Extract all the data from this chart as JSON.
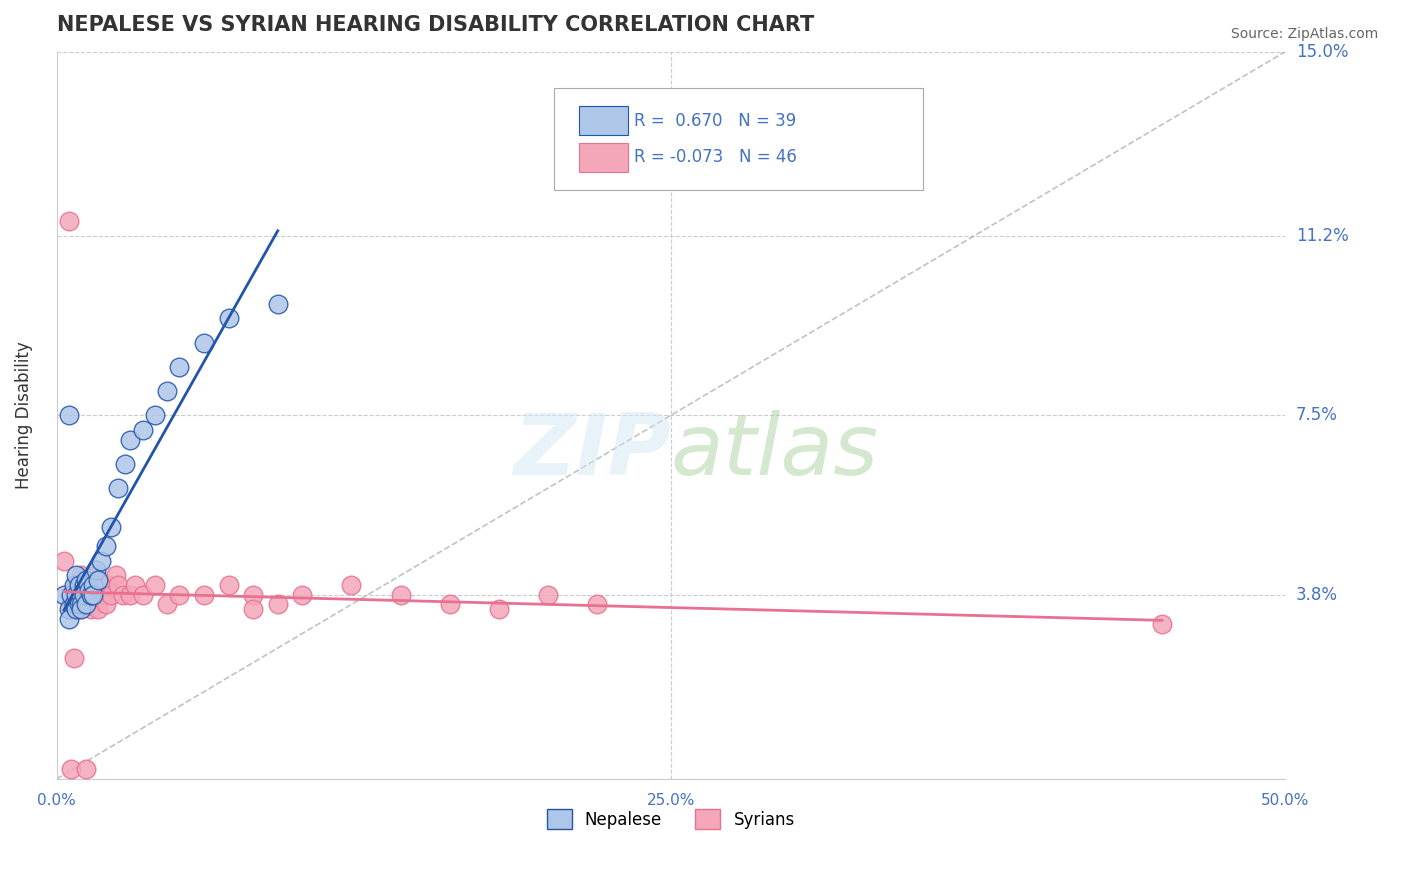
{
  "title": "NEPALESE VS SYRIAN HEARING DISABILITY CORRELATION CHART",
  "source": "Source: ZipAtlas.com",
  "ylabel": "Hearing Disability",
  "xlabel": "",
  "xlim": [
    0.0,
    0.5
  ],
  "ylim": [
    0.0,
    0.15
  ],
  "xticks": [
    0.0,
    0.05,
    0.1,
    0.15,
    0.2,
    0.25,
    0.3,
    0.35,
    0.4,
    0.45,
    0.5
  ],
  "yticks": [
    0.0,
    0.038,
    0.075,
    0.112,
    0.15
  ],
  "ytick_labels": [
    "",
    "3.8%",
    "7.5%",
    "11.2%",
    "15.0%"
  ],
  "xtick_labels": [
    "0.0%",
    "",
    "",
    "",
    "",
    "25.0%",
    "",
    "",
    "",
    "",
    "50.0%"
  ],
  "grid_color": "#cccccc",
  "nepalese_color": "#aec6e8",
  "syrian_color": "#f4a7b9",
  "nepalese_line_color": "#2255aa",
  "syrian_line_color": "#e87090",
  "legend_R_nepalese": "R =  0.670",
  "legend_N_nepalese": "N = 39",
  "legend_R_syrian": "R = -0.073",
  "legend_N_syrian": "N = 46",
  "watermark": "ZIPatlas",
  "nepalese_x": [
    0.003,
    0.005,
    0.005,
    0.006,
    0.007,
    0.007,
    0.008,
    0.008,
    0.008,
    0.009,
    0.009,
    0.009,
    0.01,
    0.01,
    0.01,
    0.011,
    0.011,
    0.012,
    0.012,
    0.013,
    0.014,
    0.015,
    0.015,
    0.016,
    0.017,
    0.018,
    0.02,
    0.022,
    0.025,
    0.028,
    0.03,
    0.035,
    0.04,
    0.045,
    0.05,
    0.06,
    0.07,
    0.09,
    0.005
  ],
  "nepalese_y": [
    0.038,
    0.035,
    0.033,
    0.038,
    0.04,
    0.036,
    0.042,
    0.035,
    0.038,
    0.037,
    0.036,
    0.04,
    0.038,
    0.036,
    0.035,
    0.04,
    0.038,
    0.041,
    0.036,
    0.039,
    0.038,
    0.04,
    0.038,
    0.043,
    0.041,
    0.045,
    0.048,
    0.052,
    0.06,
    0.065,
    0.07,
    0.072,
    0.075,
    0.08,
    0.085,
    0.09,
    0.095,
    0.098,
    0.075
  ],
  "syrian_x": [
    0.003,
    0.005,
    0.006,
    0.007,
    0.008,
    0.008,
    0.009,
    0.01,
    0.01,
    0.011,
    0.012,
    0.013,
    0.014,
    0.015,
    0.015,
    0.016,
    0.017,
    0.018,
    0.019,
    0.02,
    0.021,
    0.022,
    0.024,
    0.025,
    0.027,
    0.03,
    0.032,
    0.035,
    0.04,
    0.045,
    0.05,
    0.06,
    0.07,
    0.08,
    0.09,
    0.1,
    0.12,
    0.14,
    0.16,
    0.18,
    0.2,
    0.22,
    0.006,
    0.012,
    0.45,
    0.08
  ],
  "syrian_y": [
    0.045,
    0.115,
    0.036,
    0.025,
    0.04,
    0.038,
    0.035,
    0.042,
    0.038,
    0.04,
    0.038,
    0.036,
    0.035,
    0.04,
    0.038,
    0.042,
    0.035,
    0.04,
    0.038,
    0.036,
    0.04,
    0.038,
    0.042,
    0.04,
    0.038,
    0.038,
    0.04,
    0.038,
    0.04,
    0.036,
    0.038,
    0.038,
    0.04,
    0.038,
    0.036,
    0.038,
    0.04,
    0.038,
    0.036,
    0.035,
    0.038,
    0.036,
    0.002,
    0.002,
    0.032,
    0.035
  ]
}
